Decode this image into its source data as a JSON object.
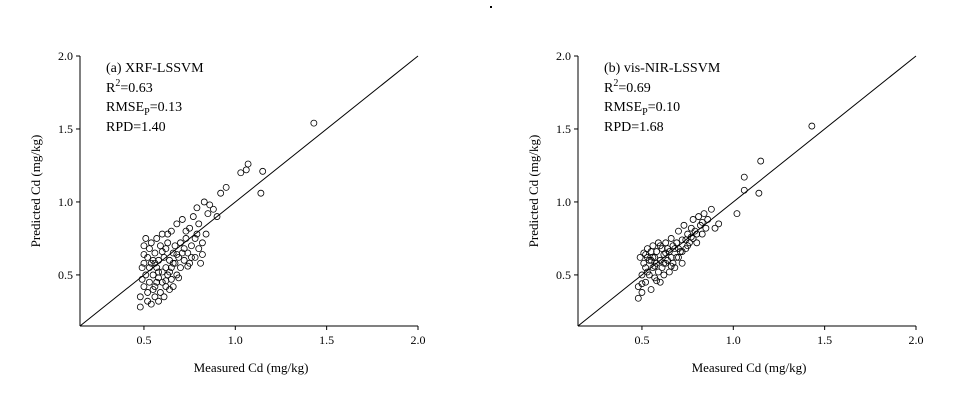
{
  "chart_data": [
    {
      "type": "scatter",
      "panel_label": "(a) XRF-LSSVM",
      "stats": {
        "r2_prefix": "R",
        "r2_sup": "2",
        "r2_value": "=0.63",
        "rmse_prefix": "RMSE",
        "rmse_sub": "P",
        "rmse_value": "=0.13",
        "rpd": "RPD=1.40"
      },
      "xlabel": "Measured Cd (mg/kg)",
      "ylabel": "Predicted Cd (mg/kg)",
      "xlim": [
        0.15,
        2.0
      ],
      "ylim": [
        0.15,
        2.0
      ],
      "xticks": [
        "0.5",
        "1.0",
        "1.5",
        "2.0"
      ],
      "yticks": [
        "0.5",
        "1.0",
        "1.5",
        "2.0"
      ],
      "reference_line": "1:1",
      "marker": "open-circle",
      "points": [
        [
          0.48,
          0.28
        ],
        [
          0.48,
          0.35
        ],
        [
          0.49,
          0.47
        ],
        [
          0.49,
          0.55
        ],
        [
          0.5,
          0.42
        ],
        [
          0.5,
          0.58
        ],
        [
          0.5,
          0.7
        ],
        [
          0.51,
          0.5
        ],
        [
          0.51,
          0.75
        ],
        [
          0.52,
          0.38
        ],
        [
          0.52,
          0.62
        ],
        [
          0.53,
          0.45
        ],
        [
          0.53,
          0.55
        ],
        [
          0.53,
          0.68
        ],
        [
          0.54,
          0.3
        ],
        [
          0.54,
          0.72
        ],
        [
          0.55,
          0.5
        ],
        [
          0.55,
          0.6
        ],
        [
          0.56,
          0.35
        ],
        [
          0.56,
          0.42
        ],
        [
          0.56,
          0.65
        ],
        [
          0.57,
          0.55
        ],
        [
          0.57,
          0.75
        ],
        [
          0.58,
          0.32
        ],
        [
          0.58,
          0.48
        ],
        [
          0.58,
          0.6
        ],
        [
          0.59,
          0.38
        ],
        [
          0.59,
          0.7
        ],
        [
          0.6,
          0.45
        ],
        [
          0.6,
          0.52
        ],
        [
          0.6,
          0.78
        ],
        [
          0.61,
          0.35
        ],
        [
          0.61,
          0.62
        ],
        [
          0.62,
          0.42
        ],
        [
          0.62,
          0.55
        ],
        [
          0.62,
          0.68
        ],
        [
          0.63,
          0.5
        ],
        [
          0.63,
          0.72
        ],
        [
          0.64,
          0.4
        ],
        [
          0.64,
          0.6
        ],
        [
          0.65,
          0.47
        ],
        [
          0.65,
          0.55
        ],
        [
          0.65,
          0.8
        ],
        [
          0.66,
          0.65
        ],
        [
          0.66,
          0.42
        ],
        [
          0.67,
          0.58
        ],
        [
          0.67,
          0.7
        ],
        [
          0.68,
          0.5
        ],
        [
          0.68,
          0.85
        ],
        [
          0.69,
          0.62
        ],
        [
          0.7,
          0.55
        ],
        [
          0.7,
          0.72
        ],
        [
          0.71,
          0.88
        ],
        [
          0.72,
          0.6
        ],
        [
          0.72,
          0.68
        ],
        [
          0.73,
          0.75
        ],
        [
          0.74,
          0.65
        ],
        [
          0.75,
          0.58
        ],
        [
          0.75,
          0.82
        ],
        [
          0.76,
          0.7
        ],
        [
          0.77,
          0.9
        ],
        [
          0.78,
          0.62
        ],
        [
          0.78,
          0.75
        ],
        [
          0.79,
          0.96
        ],
        [
          0.8,
          0.68
        ],
        [
          0.8,
          0.85
        ],
        [
          0.81,
          0.58
        ],
        [
          0.82,
          0.72
        ],
        [
          0.83,
          1.0
        ],
        [
          0.84,
          0.78
        ],
        [
          0.85,
          0.92
        ],
        [
          0.86,
          0.98
        ],
        [
          0.88,
          0.95
        ],
        [
          0.9,
          0.9
        ],
        [
          0.92,
          1.06
        ],
        [
          0.95,
          1.1
        ],
        [
          1.03,
          1.2
        ],
        [
          1.06,
          1.22
        ],
        [
          1.07,
          1.26
        ],
        [
          1.14,
          1.06
        ],
        [
          1.15,
          1.21
        ],
        [
          1.43,
          1.54
        ],
        [
          0.52,
          0.32
        ],
        [
          0.55,
          0.4
        ],
        [
          0.57,
          0.45
        ],
        [
          0.63,
          0.78
        ],
        [
          0.66,
          0.58
        ],
        [
          0.69,
          0.48
        ],
        [
          0.71,
          0.65
        ],
        [
          0.73,
          0.8
        ],
        [
          0.76,
          0.62
        ],
        [
          0.79,
          0.78
        ],
        [
          0.82,
          0.64
        ],
        [
          0.5,
          0.64
        ],
        [
          0.54,
          0.58
        ],
        [
          0.6,
          0.66
        ],
        [
          0.64,
          0.52
        ],
        [
          0.68,
          0.64
        ],
        [
          0.74,
          0.56
        ],
        [
          0.62,
          0.46
        ],
        [
          0.58,
          0.52
        ],
        [
          0.56,
          0.58
        ]
      ]
    },
    {
      "type": "scatter",
      "panel_label": "(b) vis-NIR-LSSVM",
      "stats": {
        "r2_prefix": "R",
        "r2_sup": "2",
        "r2_value": "=0.69",
        "rmse_prefix": "RMSE",
        "rmse_sub": "P",
        "rmse_value": "=0.10",
        "rpd": "RPD=1.68"
      },
      "xlabel": "Measured Cd (mg/kg)",
      "ylabel": "Predicted Cd (mg/kg)",
      "xlim": [
        0.15,
        2.0
      ],
      "ylim": [
        0.15,
        2.0
      ],
      "xticks": [
        "0.5",
        "1.0",
        "1.5",
        "2.0"
      ],
      "yticks": [
        "0.5",
        "1.0",
        "1.5",
        "2.0"
      ],
      "reference_line": "1:1",
      "marker": "open-circle",
      "points": [
        [
          0.48,
          0.34
        ],
        [
          0.48,
          0.42
        ],
        [
          0.49,
          0.62
        ],
        [
          0.5,
          0.38
        ],
        [
          0.5,
          0.5
        ],
        [
          0.51,
          0.58
        ],
        [
          0.51,
          0.65
        ],
        [
          0.52,
          0.45
        ],
        [
          0.52,
          0.55
        ],
        [
          0.53,
          0.62
        ],
        [
          0.53,
          0.68
        ],
        [
          0.54,
          0.5
        ],
        [
          0.54,
          0.6
        ],
        [
          0.55,
          0.4
        ],
        [
          0.55,
          0.66
        ],
        [
          0.56,
          0.55
        ],
        [
          0.56,
          0.7
        ],
        [
          0.57,
          0.48
        ],
        [
          0.57,
          0.62
        ],
        [
          0.58,
          0.58
        ],
        [
          0.58,
          0.66
        ],
        [
          0.59,
          0.52
        ],
        [
          0.59,
          0.72
        ],
        [
          0.6,
          0.45
        ],
        [
          0.6,
          0.6
        ],
        [
          0.61,
          0.55
        ],
        [
          0.61,
          0.68
        ],
        [
          0.62,
          0.5
        ],
        [
          0.62,
          0.64
        ],
        [
          0.63,
          0.58
        ],
        [
          0.63,
          0.72
        ],
        [
          0.64,
          0.6
        ],
        [
          0.65,
          0.52
        ],
        [
          0.65,
          0.66
        ],
        [
          0.66,
          0.62
        ],
        [
          0.66,
          0.75
        ],
        [
          0.67,
          0.58
        ],
        [
          0.68,
          0.68
        ],
        [
          0.68,
          0.55
        ],
        [
          0.69,
          0.72
        ],
        [
          0.7,
          0.62
        ],
        [
          0.7,
          0.8
        ],
        [
          0.71,
          0.66
        ],
        [
          0.72,
          0.58
        ],
        [
          0.72,
          0.74
        ],
        [
          0.73,
          0.84
        ],
        [
          0.74,
          0.68
        ],
        [
          0.75,
          0.78
        ],
        [
          0.76,
          0.72
        ],
        [
          0.77,
          0.82
        ],
        [
          0.78,
          0.75
        ],
        [
          0.78,
          0.88
        ],
        [
          0.79,
          0.8
        ],
        [
          0.8,
          0.72
        ],
        [
          0.81,
          0.9
        ],
        [
          0.82,
          0.84
        ],
        [
          0.83,
          0.78
        ],
        [
          0.84,
          0.92
        ],
        [
          0.86,
          0.88
        ],
        [
          0.88,
          0.95
        ],
        [
          0.9,
          0.82
        ],
        [
          0.92,
          0.85
        ],
        [
          1.02,
          0.92
        ],
        [
          1.06,
          1.08
        ],
        [
          1.06,
          1.17
        ],
        [
          1.14,
          1.06
        ],
        [
          1.15,
          1.28
        ],
        [
          1.43,
          1.52
        ],
        [
          0.5,
          0.44
        ],
        [
          0.53,
          0.52
        ],
        [
          0.55,
          0.6
        ],
        [
          0.58,
          0.46
        ],
        [
          0.6,
          0.7
        ],
        [
          0.63,
          0.65
        ],
        [
          0.66,
          0.56
        ],
        [
          0.69,
          0.62
        ],
        [
          0.72,
          0.66
        ],
        [
          0.75,
          0.7
        ],
        [
          0.8,
          0.78
        ],
        [
          0.85,
          0.82
        ],
        [
          0.52,
          0.64
        ],
        [
          0.56,
          0.62
        ],
        [
          0.62,
          0.58
        ],
        [
          0.67,
          0.7
        ],
        [
          0.74,
          0.74
        ],
        [
          0.57,
          0.56
        ],
        [
          0.64,
          0.68
        ],
        [
          0.7,
          0.68
        ],
        [
          0.77,
          0.76
        ],
        [
          0.83,
          0.86
        ]
      ]
    }
  ]
}
